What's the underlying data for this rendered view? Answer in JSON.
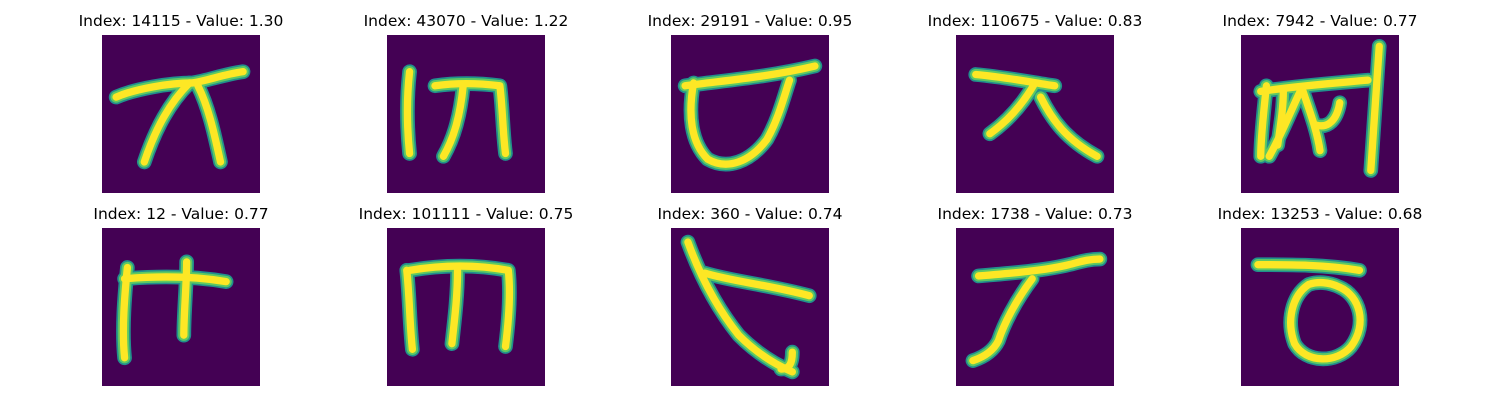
{
  "colors": {
    "background": "#440154",
    "stroke_outer": "#21908d",
    "stroke_mid": "#5ec962",
    "stroke_core": "#fde725"
  },
  "panels": [
    {
      "title": "Index: 14115 - Value: 1.30",
      "index": 14115,
      "value": 1.3
    },
    {
      "title": "Index: 43070 - Value: 1.22",
      "index": 43070,
      "value": 1.22
    },
    {
      "title": "Index: 29191 - Value: 0.95",
      "index": 29191,
      "value": 0.95
    },
    {
      "title": "Index: 110675 - Value: 0.83",
      "index": 110675,
      "value": 0.83
    },
    {
      "title": "Index: 7942 - Value: 0.77",
      "index": 7942,
      "value": 0.77
    },
    {
      "title": "Index: 12 - Value: 0.77",
      "index": 12,
      "value": 0.77
    },
    {
      "title": "Index: 101111 - Value: 0.75",
      "index": 101111,
      "value": 0.75
    },
    {
      "title": "Index: 360 - Value: 0.74",
      "index": 360,
      "value": 0.74
    },
    {
      "title": "Index: 1738 - Value: 0.73",
      "index": 1738,
      "value": 0.73
    },
    {
      "title": "Index: 13253 - Value: 0.68",
      "index": 13253,
      "value": 0.68
    }
  ]
}
